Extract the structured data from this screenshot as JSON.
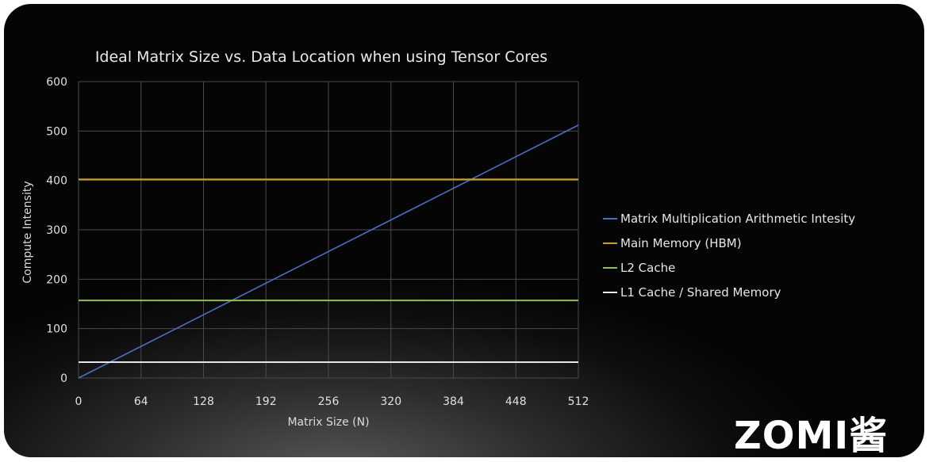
{
  "chart_data": {
    "type": "line",
    "title": "Ideal Matrix Size vs. Data Location when using Tensor Cores",
    "xlabel": "Matrix Size (N)",
    "ylabel": "Compute Intensity",
    "xlim": [
      0,
      512
    ],
    "ylim": [
      0,
      600
    ],
    "x_ticks": [
      0,
      64,
      128,
      192,
      256,
      320,
      384,
      448,
      512
    ],
    "y_ticks": [
      0,
      100,
      200,
      300,
      400,
      500,
      600
    ],
    "grid": true,
    "legend_position": "right",
    "series": [
      {
        "name": "Matrix Multiplication Arithmetic Intesity",
        "color": "#4a6fc0",
        "x": [
          0,
          512
        ],
        "y": [
          0,
          512
        ]
      },
      {
        "name": "Main Memory (HBM)",
        "color": "#c9a227",
        "x": [
          0,
          512
        ],
        "y": [
          402,
          402
        ]
      },
      {
        "name": "L2 Cache",
        "color": "#8fbf5a",
        "x": [
          0,
          512
        ],
        "y": [
          157,
          157
        ]
      },
      {
        "name": "L1 Cache / Shared Memory",
        "color": "#e6e6e6",
        "x": [
          0,
          512
        ],
        "y": [
          32,
          32
        ]
      }
    ]
  },
  "watermark": {
    "text": "ZOMI酱"
  }
}
